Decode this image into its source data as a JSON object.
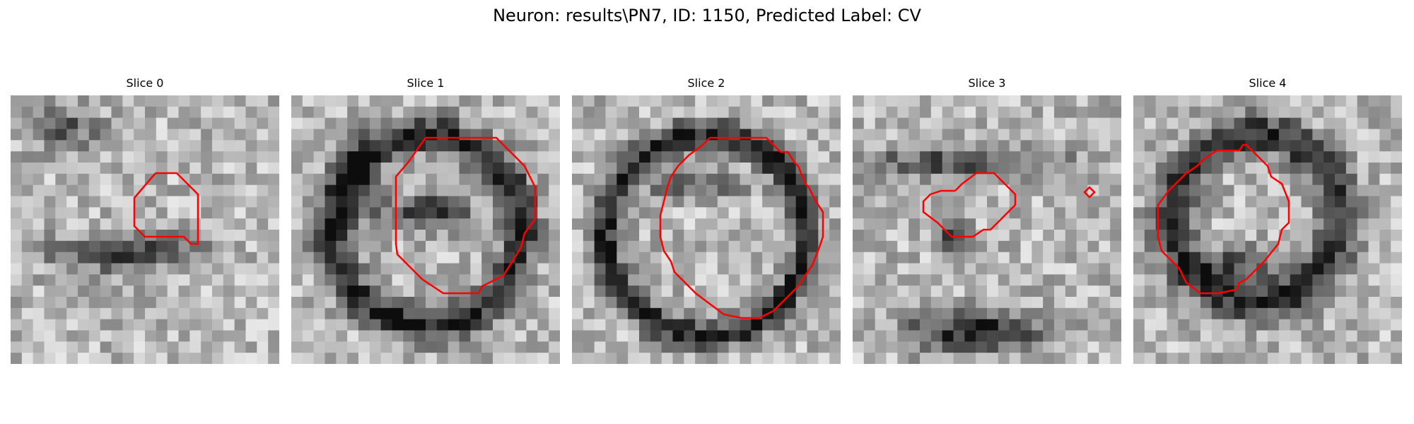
{
  "figure": {
    "title": "Neuron: results\\PN7, ID: 1150, Predicted Label: CV",
    "colors": {
      "contour": "#ff0000",
      "background": "#ffffff",
      "dark_pixel": "#111111",
      "light_pixel": "#f2f2f2"
    },
    "panels": [
      {
        "title": "Slice 0"
      },
      {
        "title": "Slice 1"
      },
      {
        "title": "Slice 2"
      },
      {
        "title": "Slice 3"
      },
      {
        "title": "Slice 4"
      }
    ]
  }
}
